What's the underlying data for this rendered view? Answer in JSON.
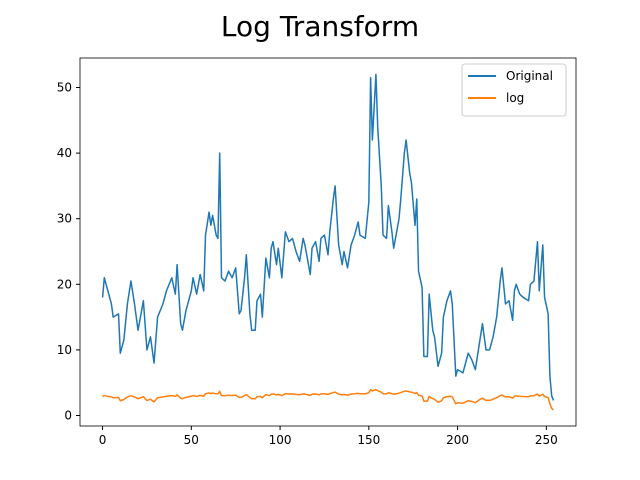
{
  "chart_data": {
    "type": "line",
    "title": "Log Transform",
    "x": [
      0,
      1,
      5,
      6,
      9,
      10,
      12,
      14,
      16,
      18,
      20,
      23,
      25,
      27,
      29,
      31,
      34,
      36,
      39,
      41,
      42,
      44,
      45,
      47,
      50,
      51,
      53,
      55,
      57,
      58,
      60,
      61,
      62,
      64,
      65,
      66,
      67,
      69,
      71,
      73,
      75,
      77,
      78,
      80,
      81,
      83,
      84,
      86,
      87,
      89,
      90,
      92,
      94,
      95,
      96,
      98,
      99,
      101,
      103,
      105,
      107,
      109,
      111,
      113,
      114,
      117,
      118,
      120,
      122,
      123,
      125,
      127,
      128,
      130,
      131,
      133,
      135,
      136,
      138,
      140,
      142,
      144,
      145,
      148,
      150,
      151,
      152,
      154,
      155,
      157,
      158,
      160,
      161,
      163,
      164,
      167,
      168,
      170,
      171,
      173,
      174,
      176,
      177,
      178,
      180,
      181,
      183,
      184,
      186,
      187,
      189,
      191,
      192,
      194,
      196,
      197,
      199,
      200,
      203,
      205,
      206,
      208,
      210,
      212,
      214,
      216,
      218,
      220,
      222,
      224,
      225,
      227,
      229,
      231,
      232,
      233,
      235,
      237,
      240,
      241,
      243,
      245,
      246,
      248,
      249,
      251,
      252,
      253,
      254
    ],
    "series": [
      {
        "name": "Original",
        "color": "#1f77b4",
        "values": [
          18,
          21,
          17,
          15,
          15.5,
          9.5,
          11.5,
          17,
          20.5,
          17,
          13,
          17.5,
          10,
          12,
          8,
          15,
          17,
          19,
          21,
          18.5,
          23,
          14,
          13,
          16,
          19,
          21,
          18.5,
          21.5,
          19,
          27.5,
          31,
          29,
          30.5,
          27.5,
          27,
          40,
          21,
          20.5,
          22,
          21,
          22.5,
          15.5,
          16,
          21,
          24.5,
          15.5,
          13,
          13,
          17.5,
          18.5,
          15,
          24,
          21,
          25.5,
          26.5,
          23,
          25.5,
          21,
          28,
          26.5,
          27,
          25,
          23.5,
          27,
          26,
          21.5,
          25.5,
          26.5,
          23.5,
          27,
          27.5,
          24.5,
          28,
          33,
          35,
          26,
          23,
          25,
          22.5,
          26,
          27.5,
          29.5,
          27.5,
          27,
          32.5,
          51.5,
          42,
          52,
          44,
          35,
          27.5,
          27,
          32,
          28,
          25.5,
          30,
          33,
          40,
          42,
          37,
          35.5,
          29,
          33,
          22,
          19.5,
          9,
          9,
          18.5,
          13,
          12,
          7.5,
          9.5,
          15,
          17.5,
          19,
          17,
          6,
          7,
          6.5,
          8.5,
          9.5,
          8.5,
          7,
          10.5,
          14,
          10,
          10,
          12,
          15,
          20.5,
          22.5,
          17,
          17.5,
          14.5,
          19,
          20,
          18.5,
          18,
          17.5,
          20,
          20.5,
          26.5,
          19,
          26,
          18,
          15.5,
          6,
          3,
          2.3
        ]
      },
      {
        "name": "log",
        "color": "#ff7f0e",
        "values": [
          2.89,
          3.04,
          2.83,
          2.71,
          2.74,
          2.25,
          2.44,
          2.83,
          3.02,
          2.83,
          2.56,
          2.86,
          2.3,
          2.48,
          2.08,
          2.71,
          2.83,
          2.94,
          3.04,
          2.92,
          3.14,
          2.64,
          2.56,
          2.77,
          2.94,
          3.04,
          2.92,
          3.07,
          2.94,
          3.31,
          3.43,
          3.37,
          3.42,
          3.31,
          3.3,
          3.69,
          3.04,
          3.02,
          3.09,
          3.04,
          3.11,
          2.74,
          2.77,
          3.04,
          3.2,
          2.74,
          2.56,
          2.56,
          2.86,
          2.92,
          2.71,
          3.18,
          3.04,
          3.24,
          3.28,
          3.14,
          3.24,
          3.04,
          3.33,
          3.28,
          3.3,
          3.22,
          3.16,
          3.3,
          3.26,
          3.07,
          3.24,
          3.28,
          3.16,
          3.3,
          3.31,
          3.2,
          3.33,
          3.5,
          3.56,
          3.26,
          3.14,
          3.22,
          3.11,
          3.26,
          3.31,
          3.38,
          3.31,
          3.3,
          3.48,
          3.94,
          3.74,
          3.95,
          3.78,
          3.56,
          3.31,
          3.3,
          3.47,
          3.33,
          3.24,
          3.4,
          3.5,
          3.69,
          3.74,
          3.61,
          3.57,
          3.37,
          3.5,
          3.09,
          2.97,
          2.2,
          2.2,
          2.92,
          2.56,
          2.48,
          2.01,
          2.25,
          2.71,
          2.86,
          2.94,
          2.83,
          1.79,
          1.95,
          1.87,
          2.14,
          2.25,
          2.14,
          1.95,
          2.35,
          2.64,
          2.3,
          2.3,
          2.48,
          2.71,
          3.02,
          3.11,
          2.83,
          2.86,
          2.67,
          2.94,
          3,
          2.92,
          2.89,
          2.86,
          3,
          3.02,
          3.28,
          2.94,
          3.26,
          2.89,
          2.74,
          1.79,
          1.1,
          0.83
        ]
      }
    ],
    "xlim": [
      -12.7,
      266.7
    ],
    "ylim": [
      -1.6,
      54.5
    ],
    "xticks": [
      0,
      50,
      100,
      150,
      200,
      250
    ],
    "yticks": [
      0,
      10,
      20,
      30,
      40,
      50
    ],
    "legend": "upper right"
  }
}
